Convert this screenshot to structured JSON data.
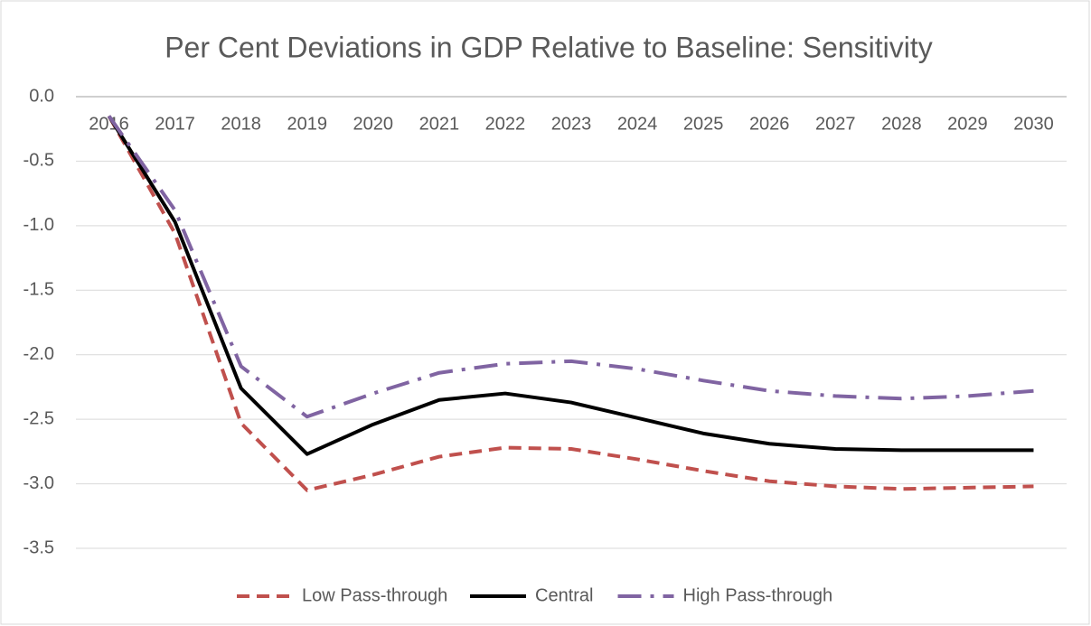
{
  "chart_data": {
    "type": "line",
    "title": "Per Cent Deviations in GDP Relative to Baseline: Sensitivity",
    "categories": [
      "2016",
      "2017",
      "2018",
      "2019",
      "2020",
      "2021",
      "2022",
      "2023",
      "2024",
      "2025",
      "2026",
      "2027",
      "2028",
      "2029",
      "2030"
    ],
    "series": [
      {
        "name": "Low Pass-through",
        "color": "#c0504d",
        "dash": "dashed",
        "values": [
          -0.15,
          -1.06,
          -2.53,
          -3.05,
          -2.93,
          -2.79,
          -2.72,
          -2.73,
          -2.81,
          -2.9,
          -2.98,
          -3.02,
          -3.04,
          -3.03,
          -3.02
        ]
      },
      {
        "name": "Central",
        "color": "#000000",
        "dash": "solid",
        "values": [
          -0.15,
          -0.97,
          -2.26,
          -2.77,
          -2.54,
          -2.35,
          -2.3,
          -2.37,
          -2.49,
          -2.61,
          -2.69,
          -2.73,
          -2.74,
          -2.74,
          -2.74
        ]
      },
      {
        "name": "High Pass-through",
        "color": "#8064a2",
        "dash": "dashdot",
        "values": [
          -0.15,
          -0.88,
          -2.09,
          -2.48,
          -2.3,
          -2.14,
          -2.07,
          -2.05,
          -2.11,
          -2.2,
          -2.28,
          -2.32,
          -2.34,
          -2.32,
          -2.28
        ]
      }
    ],
    "ylim": [
      -3.5,
      0
    ],
    "yticks": [
      {
        "value": 0,
        "label": "0.0"
      },
      -0.5,
      {
        "value": -1,
        "label": "-1.0"
      },
      -1.5,
      {
        "value": -2,
        "label": "-2.0"
      },
      -2.5,
      {
        "value": -3,
        "label": "-3.0"
      },
      -3.5
    ],
    "grid": true,
    "legend": "bottom"
  }
}
